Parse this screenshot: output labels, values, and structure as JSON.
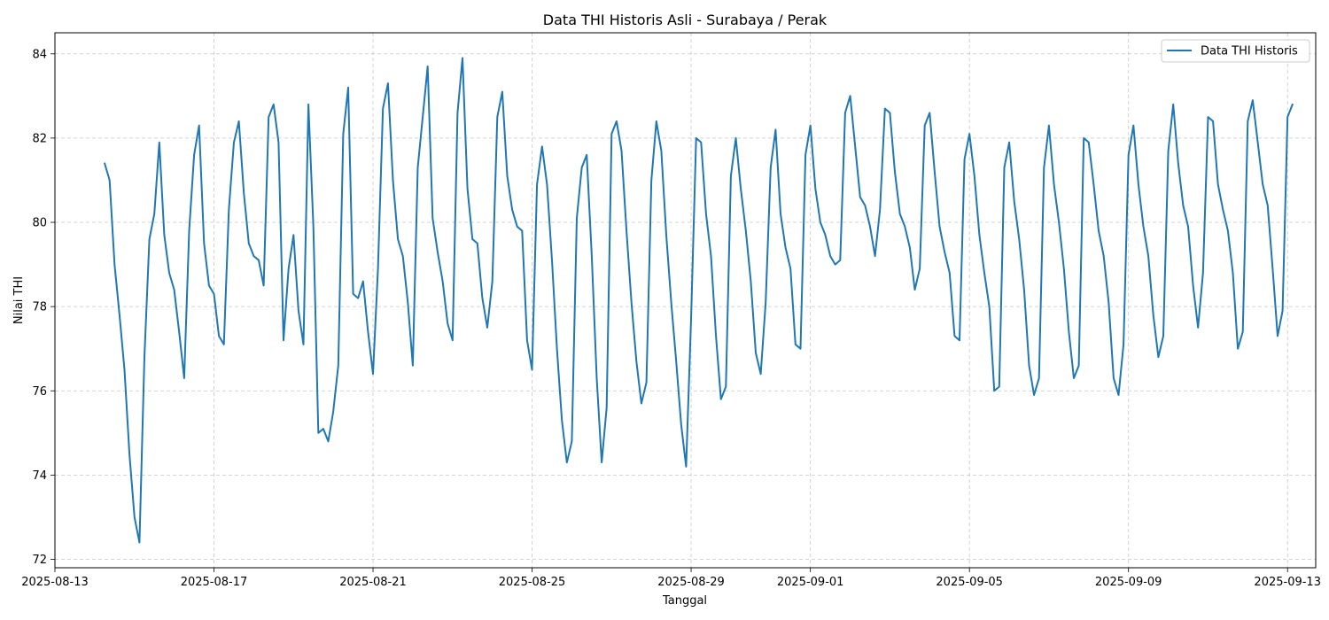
{
  "chart_data": {
    "type": "line",
    "title": "Data THI Historis Asli - Surabaya / Perak",
    "xlabel": "Tanggal",
    "ylabel": "Nilai THI",
    "x_range": [
      "2025-08-13T00:00",
      "2025-09-13T17:00"
    ],
    "ylim": [
      71.8,
      84.5
    ],
    "grid": true,
    "legend_position": "top-right",
    "x_ticks": [
      "2025-08-13",
      "2025-08-17",
      "2025-08-21",
      "2025-08-25",
      "2025-08-29",
      "2025-09-01",
      "2025-09-05",
      "2025-09-09",
      "2025-09-13"
    ],
    "y_ticks": [
      72,
      74,
      76,
      78,
      80,
      82,
      84
    ],
    "color": "#1f77b4",
    "series": [
      {
        "name": "Data THI Historis",
        "points": [
          [
            "2025-08-14T06:00",
            81.4
          ],
          [
            "2025-08-14T09:00",
            81.0
          ],
          [
            "2025-08-14T12:00",
            79.0
          ],
          [
            "2025-08-14T15:00",
            77.8
          ],
          [
            "2025-08-14T18:00",
            76.5
          ],
          [
            "2025-08-14T21:00",
            74.5
          ],
          [
            "2025-08-15T00:00",
            73.0
          ],
          [
            "2025-08-15T03:00",
            72.4
          ],
          [
            "2025-08-15T06:00",
            76.8
          ],
          [
            "2025-08-15T09:00",
            79.6
          ],
          [
            "2025-08-15T12:00",
            80.2
          ],
          [
            "2025-08-15T15:00",
            81.9
          ],
          [
            "2025-08-15T18:00",
            79.7
          ],
          [
            "2025-08-15T21:00",
            78.8
          ],
          [
            "2025-08-16T00:00",
            78.4
          ],
          [
            "2025-08-16T03:00",
            77.4
          ],
          [
            "2025-08-16T06:00",
            76.3
          ],
          [
            "2025-08-16T09:00",
            79.8
          ],
          [
            "2025-08-16T12:00",
            81.6
          ],
          [
            "2025-08-16T15:00",
            82.3
          ],
          [
            "2025-08-16T18:00",
            79.5
          ],
          [
            "2025-08-16T21:00",
            78.5
          ],
          [
            "2025-08-17T00:00",
            78.3
          ],
          [
            "2025-08-17T03:00",
            77.3
          ],
          [
            "2025-08-17T06:00",
            77.1
          ],
          [
            "2025-08-17T09:00",
            80.3
          ],
          [
            "2025-08-17T12:00",
            81.9
          ],
          [
            "2025-08-17T15:00",
            82.4
          ],
          [
            "2025-08-17T18:00",
            80.7
          ],
          [
            "2025-08-17T21:00",
            79.5
          ],
          [
            "2025-08-18T00:00",
            79.2
          ],
          [
            "2025-08-18T03:00",
            79.1
          ],
          [
            "2025-08-18T06:00",
            78.5
          ],
          [
            "2025-08-18T09:00",
            82.5
          ],
          [
            "2025-08-18T12:00",
            82.8
          ],
          [
            "2025-08-18T15:00",
            81.9
          ],
          [
            "2025-08-18T18:00",
            77.2
          ],
          [
            "2025-08-18T21:00",
            78.9
          ],
          [
            "2025-08-19T00:00",
            79.7
          ],
          [
            "2025-08-19T03:00",
            77.9
          ],
          [
            "2025-08-19T06:00",
            77.1
          ],
          [
            "2025-08-19T09:00",
            82.8
          ],
          [
            "2025-08-19T12:00",
            79.9
          ],
          [
            "2025-08-19T15:00",
            75.0
          ],
          [
            "2025-08-19T18:00",
            75.1
          ],
          [
            "2025-08-19T21:00",
            74.8
          ],
          [
            "2025-08-20T00:00",
            75.5
          ],
          [
            "2025-08-20T03:00",
            76.6
          ],
          [
            "2025-08-20T06:00",
            82.1
          ],
          [
            "2025-08-20T09:00",
            83.2
          ],
          [
            "2025-08-20T12:00",
            78.3
          ],
          [
            "2025-08-20T15:00",
            78.2
          ],
          [
            "2025-08-20T18:00",
            78.6
          ],
          [
            "2025-08-20T21:00",
            77.4
          ],
          [
            "2025-08-21T00:00",
            76.4
          ],
          [
            "2025-08-21T03:00",
            78.9
          ],
          [
            "2025-08-21T06:00",
            82.7
          ],
          [
            "2025-08-21T09:00",
            83.3
          ],
          [
            "2025-08-21T12:00",
            81.0
          ],
          [
            "2025-08-21T15:00",
            79.6
          ],
          [
            "2025-08-21T18:00",
            79.2
          ],
          [
            "2025-08-21T21:00",
            78.1
          ],
          [
            "2025-08-22T00:00",
            76.6
          ],
          [
            "2025-08-22T03:00",
            81.3
          ],
          [
            "2025-08-22T06:00",
            82.5
          ],
          [
            "2025-08-22T09:00",
            83.7
          ],
          [
            "2025-08-22T12:00",
            80.1
          ],
          [
            "2025-08-22T15:00",
            79.3
          ],
          [
            "2025-08-22T18:00",
            78.6
          ],
          [
            "2025-08-22T21:00",
            77.6
          ],
          [
            "2025-08-23T00:00",
            77.2
          ],
          [
            "2025-08-23T03:00",
            82.6
          ],
          [
            "2025-08-23T06:00",
            83.9
          ],
          [
            "2025-08-23T09:00",
            80.8
          ],
          [
            "2025-08-23T12:00",
            79.6
          ],
          [
            "2025-08-23T15:00",
            79.5
          ],
          [
            "2025-08-23T18:00",
            78.2
          ],
          [
            "2025-08-23T21:00",
            77.5
          ],
          [
            "2025-08-24T00:00",
            78.6
          ],
          [
            "2025-08-24T03:00",
            82.5
          ],
          [
            "2025-08-24T06:00",
            83.1
          ],
          [
            "2025-08-24T09:00",
            81.1
          ],
          [
            "2025-08-24T12:00",
            80.3
          ],
          [
            "2025-08-24T15:00",
            79.9
          ],
          [
            "2025-08-24T18:00",
            79.8
          ],
          [
            "2025-08-24T21:00",
            77.2
          ],
          [
            "2025-08-25T00:00",
            76.5
          ],
          [
            "2025-08-25T03:00",
            80.9
          ],
          [
            "2025-08-25T06:00",
            81.8
          ],
          [
            "2025-08-25T09:00",
            80.9
          ],
          [
            "2025-08-25T12:00",
            79.1
          ],
          [
            "2025-08-25T15:00",
            77.0
          ],
          [
            "2025-08-25T18:00",
            75.3
          ],
          [
            "2025-08-25T21:00",
            74.3
          ],
          [
            "2025-08-26T00:00",
            74.8
          ],
          [
            "2025-08-26T03:00",
            80.1
          ],
          [
            "2025-08-26T06:00",
            81.3
          ],
          [
            "2025-08-26T09:00",
            81.6
          ],
          [
            "2025-08-26T12:00",
            79.2
          ],
          [
            "2025-08-26T15:00",
            76.3
          ],
          [
            "2025-08-26T18:00",
            74.3
          ],
          [
            "2025-08-26T21:00",
            75.6
          ],
          [
            "2025-08-27T00:00",
            82.1
          ],
          [
            "2025-08-27T03:00",
            82.4
          ],
          [
            "2025-08-27T06:00",
            81.7
          ],
          [
            "2025-08-27T09:00",
            79.8
          ],
          [
            "2025-08-27T12:00",
            78.1
          ],
          [
            "2025-08-27T15:00",
            76.7
          ],
          [
            "2025-08-27T18:00",
            75.7
          ],
          [
            "2025-08-27T21:00",
            76.2
          ],
          [
            "2025-08-28T00:00",
            81.0
          ],
          [
            "2025-08-28T03:00",
            82.4
          ],
          [
            "2025-08-28T06:00",
            81.7
          ],
          [
            "2025-08-28T09:00",
            79.7
          ],
          [
            "2025-08-28T12:00",
            78.1
          ],
          [
            "2025-08-28T15:00",
            76.7
          ],
          [
            "2025-08-28T18:00",
            75.2
          ],
          [
            "2025-08-28T21:00",
            74.2
          ],
          [
            "2025-08-29T00:00",
            77.7
          ],
          [
            "2025-08-29T03:00",
            82.0
          ],
          [
            "2025-08-29T06:00",
            81.9
          ],
          [
            "2025-08-29T09:00",
            80.2
          ],
          [
            "2025-08-29T12:00",
            79.2
          ],
          [
            "2025-08-29T15:00",
            77.3
          ],
          [
            "2025-08-29T18:00",
            75.8
          ],
          [
            "2025-08-29T21:00",
            76.1
          ],
          [
            "2025-08-30T00:00",
            81.1
          ],
          [
            "2025-08-30T03:00",
            82.0
          ],
          [
            "2025-08-30T06:00",
            80.8
          ],
          [
            "2025-08-30T09:00",
            79.8
          ],
          [
            "2025-08-30T12:00",
            78.6
          ],
          [
            "2025-08-30T15:00",
            76.9
          ],
          [
            "2025-08-30T18:00",
            76.4
          ],
          [
            "2025-08-30T21:00",
            78.1
          ],
          [
            "2025-08-31T00:00",
            81.3
          ],
          [
            "2025-08-31T03:00",
            82.2
          ],
          [
            "2025-08-31T06:00",
            80.2
          ],
          [
            "2025-08-31T09:00",
            79.4
          ],
          [
            "2025-08-31T12:00",
            78.9
          ],
          [
            "2025-08-31T15:00",
            77.1
          ],
          [
            "2025-08-31T18:00",
            77.0
          ],
          [
            "2025-08-31T21:00",
            81.6
          ],
          [
            "2025-09-01T00:00",
            82.3
          ],
          [
            "2025-09-01T03:00",
            80.8
          ],
          [
            "2025-09-01T06:00",
            80.0
          ],
          [
            "2025-09-01T09:00",
            79.7
          ],
          [
            "2025-09-01T12:00",
            79.2
          ],
          [
            "2025-09-01T15:00",
            79.0
          ],
          [
            "2025-09-01T18:00",
            79.1
          ],
          [
            "2025-09-01T21:00",
            82.6
          ],
          [
            "2025-09-02T00:00",
            83.0
          ],
          [
            "2025-09-02T03:00",
            81.8
          ],
          [
            "2025-09-02T06:00",
            80.6
          ],
          [
            "2025-09-02T09:00",
            80.4
          ],
          [
            "2025-09-02T12:00",
            79.9
          ],
          [
            "2025-09-02T15:00",
            79.2
          ],
          [
            "2025-09-02T18:00",
            80.3
          ],
          [
            "2025-09-02T21:00",
            82.7
          ],
          [
            "2025-09-03T00:00",
            82.6
          ],
          [
            "2025-09-03T03:00",
            81.2
          ],
          [
            "2025-09-03T06:00",
            80.2
          ],
          [
            "2025-09-03T09:00",
            79.9
          ],
          [
            "2025-09-03T12:00",
            79.4
          ],
          [
            "2025-09-03T15:00",
            78.4
          ],
          [
            "2025-09-03T18:00",
            78.9
          ],
          [
            "2025-09-03T21:00",
            82.3
          ],
          [
            "2025-09-04T00:00",
            82.6
          ],
          [
            "2025-09-04T03:00",
            81.2
          ],
          [
            "2025-09-04T06:00",
            79.9
          ],
          [
            "2025-09-04T09:00",
            79.3
          ],
          [
            "2025-09-04T12:00",
            78.8
          ],
          [
            "2025-09-04T15:00",
            77.3
          ],
          [
            "2025-09-04T18:00",
            77.2
          ],
          [
            "2025-09-04T21:00",
            81.5
          ],
          [
            "2025-09-05T00:00",
            82.1
          ],
          [
            "2025-09-05T03:00",
            81.1
          ],
          [
            "2025-09-05T06:00",
            79.7
          ],
          [
            "2025-09-05T09:00",
            78.8
          ],
          [
            "2025-09-05T12:00",
            78.0
          ],
          [
            "2025-09-05T15:00",
            76.0
          ],
          [
            "2025-09-05T18:00",
            76.1
          ],
          [
            "2025-09-05T21:00",
            81.3
          ],
          [
            "2025-09-06T00:00",
            81.9
          ],
          [
            "2025-09-06T03:00",
            80.5
          ],
          [
            "2025-09-06T06:00",
            79.6
          ],
          [
            "2025-09-06T09:00",
            78.4
          ],
          [
            "2025-09-06T12:00",
            76.6
          ],
          [
            "2025-09-06T15:00",
            75.9
          ],
          [
            "2025-09-06T18:00",
            76.3
          ],
          [
            "2025-09-06T21:00",
            81.3
          ],
          [
            "2025-09-07T00:00",
            82.3
          ],
          [
            "2025-09-07T03:00",
            80.9
          ],
          [
            "2025-09-07T06:00",
            80.0
          ],
          [
            "2025-09-07T09:00",
            78.9
          ],
          [
            "2025-09-07T12:00",
            77.4
          ],
          [
            "2025-09-07T15:00",
            76.3
          ],
          [
            "2025-09-07T18:00",
            76.6
          ],
          [
            "2025-09-07T21:00",
            82.0
          ],
          [
            "2025-09-08T00:00",
            81.9
          ],
          [
            "2025-09-08T03:00",
            80.9
          ],
          [
            "2025-09-08T06:00",
            79.8
          ],
          [
            "2025-09-08T09:00",
            79.2
          ],
          [
            "2025-09-08T12:00",
            78.1
          ],
          [
            "2025-09-08T15:00",
            76.3
          ],
          [
            "2025-09-08T18:00",
            75.9
          ],
          [
            "2025-09-08T21:00",
            77.1
          ],
          [
            "2025-09-09T00:00",
            81.6
          ],
          [
            "2025-09-09T03:00",
            82.3
          ],
          [
            "2025-09-09T06:00",
            80.9
          ],
          [
            "2025-09-09T09:00",
            79.9
          ],
          [
            "2025-09-09T12:00",
            79.2
          ],
          [
            "2025-09-09T15:00",
            77.8
          ],
          [
            "2025-09-09T18:00",
            76.8
          ],
          [
            "2025-09-09T21:00",
            77.3
          ],
          [
            "2025-09-10T00:00",
            81.7
          ],
          [
            "2025-09-10T03:00",
            82.8
          ],
          [
            "2025-09-10T06:00",
            81.4
          ],
          [
            "2025-09-10T09:00",
            80.4
          ],
          [
            "2025-09-10T12:00",
            79.9
          ],
          [
            "2025-09-10T15:00",
            78.5
          ],
          [
            "2025-09-10T18:00",
            77.5
          ],
          [
            "2025-09-10T21:00",
            78.8
          ],
          [
            "2025-09-11T00:00",
            82.5
          ],
          [
            "2025-09-11T03:00",
            82.4
          ],
          [
            "2025-09-11T06:00",
            80.9
          ],
          [
            "2025-09-11T09:00",
            80.3
          ],
          [
            "2025-09-11T12:00",
            79.8
          ],
          [
            "2025-09-11T15:00",
            78.8
          ],
          [
            "2025-09-11T18:00",
            77.0
          ],
          [
            "2025-09-11T21:00",
            77.4
          ],
          [
            "2025-09-12T00:00",
            82.4
          ],
          [
            "2025-09-12T03:00",
            82.9
          ],
          [
            "2025-09-12T06:00",
            81.9
          ],
          [
            "2025-09-12T09:00",
            80.9
          ],
          [
            "2025-09-12T12:00",
            80.4
          ],
          [
            "2025-09-12T15:00",
            78.9
          ],
          [
            "2025-09-12T18:00",
            77.3
          ],
          [
            "2025-09-12T21:00",
            77.9
          ],
          [
            "2025-09-13T00:00",
            82.5
          ],
          [
            "2025-09-13T03:00",
            82.8
          ]
        ]
      }
    ]
  }
}
